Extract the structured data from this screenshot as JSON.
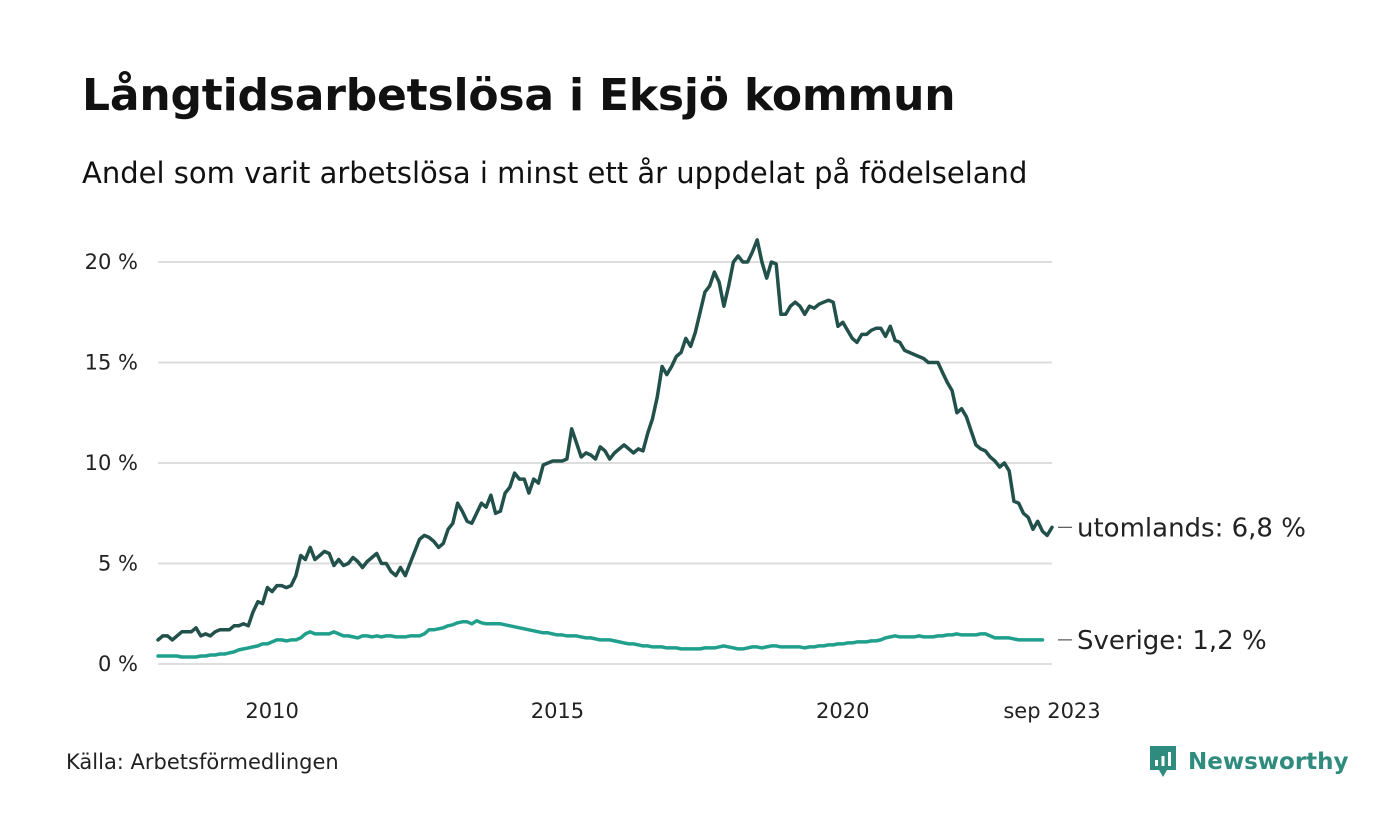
{
  "title": "Långtidsarbetslösa i Eksjö kommun",
  "subtitle": "Andel som varit arbetslösa i minst ett år uppdelat på födelseland",
  "source": "Källa: Arbetsförmedlingen",
  "brand": "Newsworthy",
  "colors": {
    "utomlands": "#22504a",
    "sverige": "#20a08c",
    "grid": "#dddddd",
    "brand": "#2e8b7e"
  },
  "chart_data": {
    "type": "line",
    "title": "Långtidsarbetslösa i Eksjö kommun",
    "xlabel": "",
    "ylabel": "",
    "x_start": 2008.0,
    "x_step_months": 1,
    "xlim": [
      2008.0,
      2023.667
    ],
    "ylim": [
      0,
      20
    ],
    "grid": true,
    "y_ticks": [
      {
        "value": 0,
        "label": "0 %"
      },
      {
        "value": 5,
        "label": "5 %"
      },
      {
        "value": 10,
        "label": "10 %"
      },
      {
        "value": 15,
        "label": "15 %"
      },
      {
        "value": 20,
        "label": "20 %"
      }
    ],
    "x_ticks": [
      {
        "value": 2010,
        "label": "2010"
      },
      {
        "value": 2015,
        "label": "2015"
      },
      {
        "value": 2020,
        "label": "2020"
      },
      {
        "value": 2023.667,
        "label": "sep 2023"
      }
    ],
    "series": [
      {
        "name": "utomlands",
        "label": "utomlands: 6,8 %",
        "color": "#22504a",
        "values": [
          1.2,
          1.4,
          1.4,
          1.2,
          1.4,
          1.6,
          1.6,
          1.6,
          1.8,
          1.4,
          1.5,
          1.4,
          1.6,
          1.7,
          1.7,
          1.7,
          1.9,
          1.9,
          2.0,
          1.9,
          2.6,
          3.1,
          3.0,
          3.8,
          3.6,
          3.9,
          3.9,
          3.8,
          3.9,
          4.4,
          5.4,
          5.2,
          5.8,
          5.2,
          5.4,
          5.6,
          5.5,
          4.9,
          5.2,
          4.9,
          5.0,
          5.3,
          5.1,
          4.8,
          5.1,
          5.3,
          5.5,
          5.0,
          5.0,
          4.6,
          4.4,
          4.8,
          4.4,
          5.0,
          5.6,
          6.2,
          6.4,
          6.3,
          6.1,
          5.8,
          6.0,
          6.7,
          7.0,
          8.0,
          7.6,
          7.1,
          7.0,
          7.5,
          8.0,
          7.8,
          8.4,
          7.5,
          7.6,
          8.5,
          8.8,
          9.5,
          9.2,
          9.2,
          8.5,
          9.2,
          9.0,
          9.9,
          10.0,
          10.1,
          10.1,
          10.1,
          10.2,
          11.7,
          11.0,
          10.3,
          10.5,
          10.4,
          10.2,
          10.8,
          10.6,
          10.2,
          10.5,
          10.7,
          10.9,
          10.7,
          10.5,
          10.7,
          10.6,
          11.5,
          12.2,
          13.3,
          14.8,
          14.4,
          14.8,
          15.3,
          15.5,
          16.2,
          15.8,
          16.5,
          17.5,
          18.5,
          18.8,
          19.5,
          19.0,
          17.8,
          18.8,
          20.0,
          20.3,
          20.0,
          20.0,
          20.5,
          21.1,
          20.0,
          19.2,
          20.0,
          19.9,
          17.4,
          17.4,
          17.8,
          18.0,
          17.8,
          17.4,
          17.8,
          17.7,
          17.9,
          18.0,
          18.1,
          18.0,
          16.8,
          17.0,
          16.6,
          16.2,
          16.0,
          16.4,
          16.4,
          16.6,
          16.7,
          16.7,
          16.3,
          16.8,
          16.1,
          16.0,
          15.6,
          15.5,
          15.4,
          15.3,
          15.2,
          15.0,
          15.0,
          15.0,
          14.5,
          14.0,
          13.6,
          12.5,
          12.7,
          12.3,
          11.6,
          10.9,
          10.7,
          10.6,
          10.3,
          10.1,
          9.8,
          10.0,
          9.6,
          8.1,
          8.0,
          7.5,
          7.3,
          6.7,
          7.1,
          6.6,
          6.4,
          6.8
        ]
      },
      {
        "name": "sverige",
        "label": "Sverige: 1,2 %",
        "color": "#20a08c",
        "values": [
          0.4,
          0.4,
          0.4,
          0.4,
          0.4,
          0.35,
          0.35,
          0.35,
          0.35,
          0.4,
          0.4,
          0.45,
          0.45,
          0.5,
          0.5,
          0.55,
          0.6,
          0.7,
          0.75,
          0.8,
          0.85,
          0.9,
          1.0,
          1.0,
          1.1,
          1.2,
          1.2,
          1.15,
          1.2,
          1.2,
          1.3,
          1.5,
          1.6,
          1.5,
          1.5,
          1.5,
          1.5,
          1.6,
          1.5,
          1.4,
          1.4,
          1.35,
          1.3,
          1.4,
          1.4,
          1.35,
          1.4,
          1.35,
          1.4,
          1.4,
          1.35,
          1.35,
          1.35,
          1.4,
          1.4,
          1.4,
          1.5,
          1.7,
          1.7,
          1.75,
          1.8,
          1.9,
          1.95,
          2.05,
          2.1,
          2.1,
          2.0,
          2.15,
          2.05,
          2.0,
          2.0,
          2.0,
          2.0,
          1.95,
          1.9,
          1.85,
          1.8,
          1.75,
          1.7,
          1.65,
          1.6,
          1.55,
          1.55,
          1.5,
          1.45,
          1.45,
          1.4,
          1.4,
          1.4,
          1.35,
          1.3,
          1.3,
          1.25,
          1.2,
          1.2,
          1.2,
          1.15,
          1.1,
          1.05,
          1.0,
          1.0,
          0.95,
          0.9,
          0.9,
          0.85,
          0.85,
          0.85,
          0.8,
          0.8,
          0.8,
          0.75,
          0.75,
          0.75,
          0.75,
          0.75,
          0.8,
          0.8,
          0.8,
          0.85,
          0.9,
          0.85,
          0.8,
          0.75,
          0.75,
          0.8,
          0.85,
          0.85,
          0.8,
          0.85,
          0.9,
          0.9,
          0.85,
          0.85,
          0.85,
          0.85,
          0.85,
          0.8,
          0.85,
          0.85,
          0.9,
          0.9,
          0.95,
          0.95,
          1.0,
          1.0,
          1.05,
          1.05,
          1.1,
          1.1,
          1.1,
          1.15,
          1.15,
          1.2,
          1.3,
          1.35,
          1.4,
          1.35,
          1.35,
          1.35,
          1.35,
          1.4,
          1.35,
          1.35,
          1.35,
          1.4,
          1.4,
          1.45,
          1.45,
          1.5,
          1.45,
          1.45,
          1.45,
          1.45,
          1.5,
          1.5,
          1.4,
          1.3,
          1.3,
          1.3,
          1.3,
          1.25,
          1.2,
          1.2,
          1.2,
          1.2,
          1.2,
          1.2
        ]
      }
    ]
  }
}
